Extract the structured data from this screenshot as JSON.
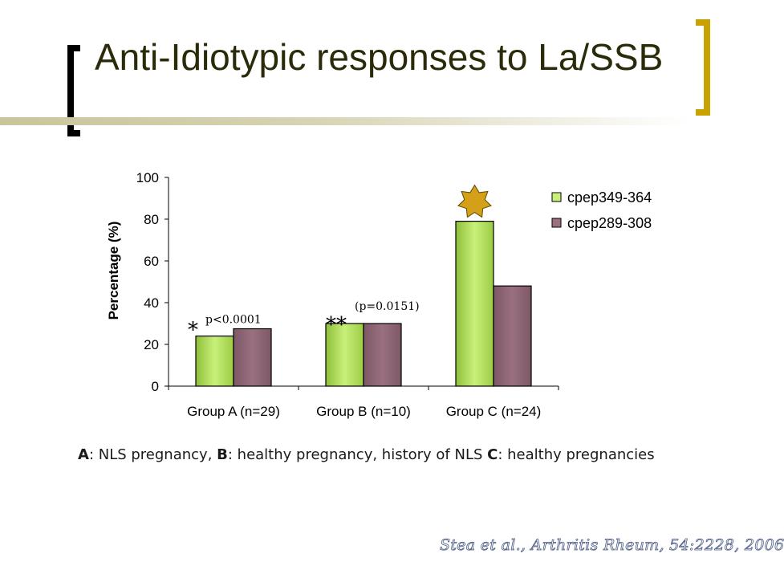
{
  "slide": {
    "title": "Anti-Idiotypic responses to La/SSB",
    "caption_parts": [
      {
        "text": "A",
        "bold": true
      },
      {
        "text": ": NLS pregnancy, ",
        "bold": false
      },
      {
        "text": "B",
        "bold": true
      },
      {
        "text": ": healthy pregnancy, history of NLS ",
        "bold": false
      },
      {
        "text": "C",
        "bold": true
      },
      {
        "text": ": healthy pregnancies",
        "bold": false
      }
    ],
    "citation": "Stea et al., Arthritis Rheum, 54:2228, 2006"
  },
  "colors": {
    "series1": "#c8f07a",
    "series2": "#9a7080",
    "star": "#d4a017",
    "bracket_right": "#c9a100"
  },
  "chart_data": {
    "type": "bar",
    "title": "",
    "xlabel": "",
    "ylabel": "Percentage (%)",
    "ylim": [
      0,
      100
    ],
    "yticks": [
      0,
      20,
      40,
      60,
      80,
      100
    ],
    "categories": [
      "Group A (n=29)",
      "Group B (n=10)",
      "Group C (n=24)"
    ],
    "series": [
      {
        "name": "cpep349-364",
        "values": [
          24,
          30,
          79
        ]
      },
      {
        "name": "cpep289-308",
        "values": [
          27.5,
          30,
          48
        ]
      }
    ],
    "legend": "top-right",
    "grid": false,
    "annotations": [
      {
        "category": "Group A (n=29)",
        "mark": "*",
        "text": "p<0.0001"
      },
      {
        "category": "Group B (n=10)",
        "mark": "**",
        "text": "(p=0.0151)"
      },
      {
        "category": "Group C (n=24)",
        "mark": "star-icon",
        "text": ""
      }
    ]
  }
}
